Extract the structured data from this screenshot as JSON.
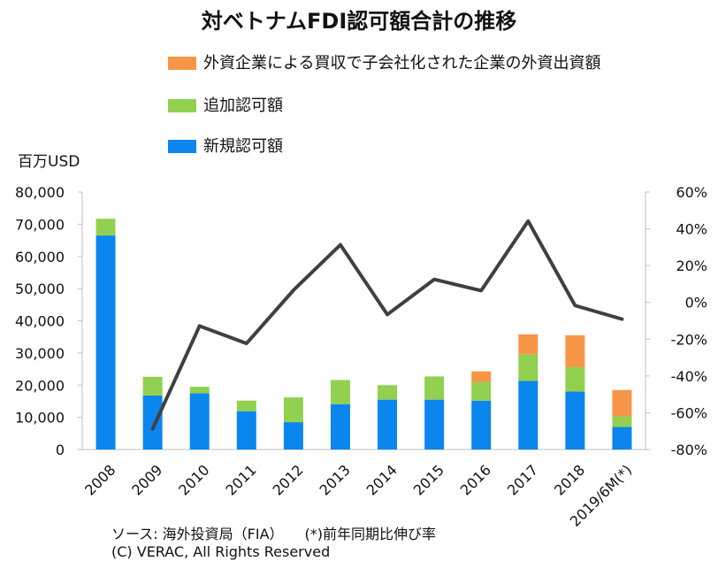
{
  "chart_data": {
    "type": "bar",
    "title": "対ベトナムFDI認可額合計の推移",
    "y_unit_label": "百万USD",
    "categories": [
      "2008",
      "2009",
      "2010",
      "2011",
      "2012",
      "2013",
      "2014",
      "2015",
      "2016",
      "2017",
      "2018",
      "2019/6M(*)"
    ],
    "series": [
      {
        "name": "新規認可額",
        "type": "bar",
        "stack": "main",
        "color": "#0a86ee",
        "values": [
          66500,
          16800,
          17500,
          11900,
          8500,
          14100,
          15500,
          15500,
          15200,
          21300,
          18000,
          7000
        ]
      },
      {
        "name": "追加認可額",
        "type": "bar",
        "stack": "main",
        "color": "#92d050",
        "values": [
          5200,
          5800,
          2000,
          3300,
          7700,
          7500,
          4500,
          7200,
          5800,
          8300,
          7600,
          3300
        ]
      },
      {
        "name": "外資企業による買収で子会社化された企業の外資出資額",
        "type": "bar",
        "stack": "main",
        "color": "#f79646",
        "values": [
          0,
          0,
          0,
          0,
          0,
          0,
          0,
          0,
          3300,
          6200,
          9900,
          8200
        ]
      },
      {
        "name": "前年同期比伸び率",
        "type": "line",
        "axis": "right",
        "color": "#404040",
        "values": [
          null,
          -68.8,
          -12.8,
          -22.3,
          6.6,
          31.3,
          -6.6,
          12.5,
          6.4,
          44.2,
          -1.7,
          -9.1
        ]
      }
    ],
    "ylim": [
      0,
      80000
    ],
    "yticks": [
      "0",
      "10,000",
      "20,000",
      "30,000",
      "40,000",
      "50,000",
      "60,000",
      "70,000",
      "80,000"
    ],
    "y2lim": [
      -80,
      60
    ],
    "y2ticks": [
      "-80%",
      "-60%",
      "-40%",
      "-20%",
      "0%",
      "20%",
      "40%",
      "60%"
    ],
    "legend": "top"
  },
  "legend_items": [
    {
      "label": "外資企業による買収で子会社化された企業の外資出資額",
      "color": "#f79646"
    },
    {
      "label": "追加認可額",
      "color": "#92d050"
    },
    {
      "label": "新規認可額",
      "color": "#0a86ee"
    }
  ],
  "source": "ソース: 海外投資局（FIA）　　(*)前年同期比伸び率",
  "copyright": "(C) VERAC, All Rights Reserved"
}
